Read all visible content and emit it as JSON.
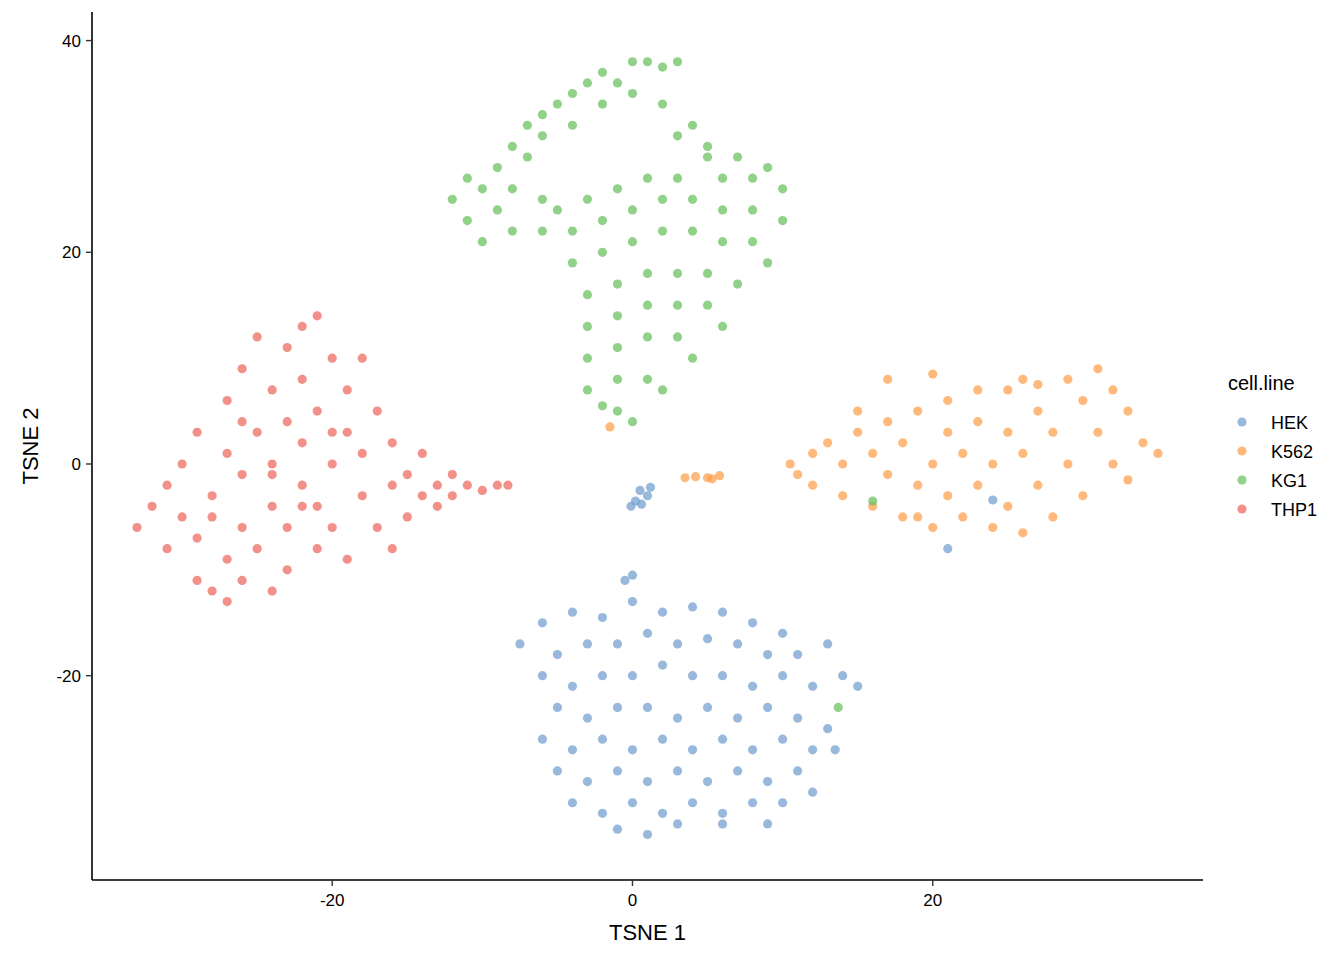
{
  "chart_data": {
    "type": "scatter",
    "x_label": "TSNE 1",
    "y_label": "TSNE 2",
    "legend_title": "cell.line",
    "legend": "right",
    "marker": "circle",
    "grid": false,
    "xlim": [
      -36,
      38
    ],
    "ylim": [
      -39.3,
      42.7
    ],
    "xticks": [
      -20,
      0,
      20
    ],
    "yticks": [
      -20,
      0,
      20,
      40
    ],
    "series": [
      {
        "name": "HEK",
        "color": "#729ece",
        "x": [
          -7.5,
          -6,
          -4,
          -2,
          0,
          2,
          4,
          6,
          8,
          10,
          -0.5,
          0,
          -5,
          -3,
          -1,
          1,
          3,
          5,
          7,
          9,
          11,
          13,
          -6,
          -4,
          -2,
          0,
          2,
          4,
          6,
          8,
          10,
          12,
          14,
          -5,
          -3,
          -1,
          1,
          3,
          5,
          7,
          9,
          11,
          13,
          15,
          -6,
          -4,
          -2,
          0,
          2,
          4,
          6,
          8,
          10,
          12,
          13.5,
          -5,
          -3,
          -1,
          1,
          3,
          5,
          7,
          9,
          11,
          12,
          -4,
          -2,
          0,
          2,
          4,
          6,
          8,
          10,
          -1,
          1,
          3,
          6,
          9,
          0.5,
          1,
          0.6,
          0.2,
          1.2,
          -0.1,
          24,
          21
        ],
        "values": [
          -17,
          -15,
          -14,
          -14.5,
          -13,
          -14,
          -13.5,
          -14,
          -15,
          -16,
          -11,
          -10.5,
          -18,
          -17,
          -17,
          -16,
          -17,
          -16.5,
          -17,
          -18,
          -18,
          -17,
          -20,
          -21,
          -20,
          -20,
          -19,
          -20,
          -20,
          -21,
          -20,
          -21,
          -20,
          -23,
          -24,
          -23,
          -23,
          -24,
          -23,
          -24,
          -23,
          -24,
          -25,
          -21,
          -26,
          -27,
          -26,
          -27,
          -26,
          -27,
          -26,
          -27,
          -26,
          -27,
          -27,
          -29,
          -30,
          -29,
          -30,
          -29,
          -30,
          -29,
          -30,
          -29,
          -31,
          -32,
          -33,
          -32,
          -33,
          -32,
          -33,
          -32,
          -32,
          -34.5,
          -35,
          -34,
          -34,
          -34,
          -2.5,
          -3,
          -3.8,
          -3.5,
          -2.2,
          -4,
          -3.4,
          -8
        ]
      },
      {
        "name": "K562",
        "color": "#ff9e4a",
        "x": [
          10.5,
          11,
          12,
          12,
          13,
          14,
          14,
          15,
          16,
          16,
          17,
          17,
          18,
          18,
          19,
          19,
          20,
          20,
          21,
          21,
          21,
          22,
          22,
          23,
          23,
          23,
          24,
          24,
          25,
          25,
          25,
          26,
          26,
          27,
          27,
          27,
          28,
          28,
          29,
          29,
          30,
          30,
          31,
          31,
          32,
          32,
          33,
          33,
          34,
          35,
          17,
          20,
          15,
          19,
          26,
          3.5,
          4.2,
          5,
          5.8,
          5.3,
          -1.5
        ],
        "values": [
          0,
          -1,
          1,
          -2,
          2,
          -3,
          0,
          3,
          -4,
          1,
          4,
          -1,
          -5,
          2,
          5,
          -2,
          -6,
          0,
          6,
          3,
          -3,
          -5,
          1,
          7,
          4,
          -2,
          -6,
          0,
          7,
          3,
          -4,
          -6.5,
          1,
          7.5,
          5,
          -2,
          -5,
          3,
          8,
          0,
          6,
          -3,
          9,
          3,
          7,
          0,
          5,
          -1.5,
          2,
          1,
          8,
          8.5,
          5,
          -5,
          8,
          -1.3,
          -1.2,
          -1.3,
          -1.1,
          -1.4,
          3.5
        ]
      },
      {
        "name": "KG1",
        "color": "#67bf5c",
        "x": [
          -12,
          -11,
          -10,
          -9,
          -10,
          -8,
          -11,
          -9,
          -8,
          -8,
          -7,
          -6,
          -5,
          -4,
          -3,
          -2,
          -1,
          0,
          1,
          2,
          3,
          -2,
          0,
          2,
          -4,
          3,
          5,
          4,
          -7,
          -6,
          5,
          7,
          9,
          -3,
          -1,
          1,
          3,
          6,
          8,
          10,
          -4,
          -2,
          0,
          2,
          4,
          6,
          8,
          10,
          -4,
          -2,
          0,
          2,
          4,
          6,
          8,
          9,
          -3,
          -1,
          1,
          3,
          5,
          7,
          -3,
          -1,
          1,
          3,
          5,
          6,
          -3,
          -1,
          1,
          3,
          4,
          -3,
          -1,
          1,
          2,
          -1,
          0,
          -2,
          -5,
          -6,
          -6,
          13.7,
          16
        ],
        "values": [
          25,
          23,
          26,
          24,
          21,
          22,
          27,
          28,
          26,
          30,
          32,
          33,
          34,
          35,
          36,
          37,
          36,
          38,
          38,
          37.5,
          38,
          34,
          35,
          34,
          32,
          31,
          30,
          32,
          29,
          31,
          29,
          29,
          28,
          25,
          26,
          27,
          27,
          27,
          27,
          26,
          22,
          23,
          24,
          25,
          25,
          24,
          24,
          23,
          19,
          20,
          21,
          22,
          22,
          21,
          21,
          19,
          16,
          17,
          18,
          18,
          18,
          17,
          13,
          14,
          15,
          15,
          15,
          13,
          10,
          11,
          12,
          12,
          10,
          7,
          8,
          8,
          7,
          5,
          4,
          5.5,
          24,
          22,
          25,
          -23,
          -3.5
        ]
      },
      {
        "name": "THP1",
        "color": "#ed665d",
        "x": [
          -33,
          -32,
          -31,
          -31,
          -30,
          -30,
          -29,
          -29,
          -29,
          -28,
          -28,
          -27,
          -27,
          -27,
          -27,
          -26,
          -26,
          -26,
          -26,
          -25,
          -25,
          -25,
          -24,
          -24,
          -24,
          -24,
          -23,
          -23,
          -23,
          -23,
          -22,
          -22,
          -22,
          -22,
          -21,
          -21,
          -21,
          -21,
          -20,
          -20,
          -20,
          -19,
          -19,
          -19,
          -18,
          -18,
          -18,
          -17,
          -17,
          -16,
          -16,
          -16,
          -15,
          -15,
          -14,
          -14,
          -13,
          -13,
          -12,
          -12,
          -11,
          -10,
          -9,
          -8.3,
          -28,
          -26,
          -24,
          -22,
          -20
        ],
        "values": [
          -6,
          -4,
          -8,
          -2,
          -5,
          0,
          -11,
          -7,
          3,
          -12,
          -3,
          -13,
          -9,
          1,
          6,
          -11,
          -6,
          -1,
          9,
          -8,
          3,
          12,
          -12,
          -4,
          0,
          7,
          -10,
          -6,
          4,
          11,
          -2,
          2,
          8,
          13,
          14,
          -8,
          -4,
          5,
          0,
          10,
          -6,
          -9,
          3,
          7,
          -3,
          1,
          10,
          -6,
          5,
          -2,
          -8,
          2,
          -5,
          -1,
          -3,
          1,
          -2,
          -4,
          -1,
          -3,
          -2,
          -2.5,
          -2,
          -2,
          -5,
          4,
          -1,
          -4,
          3
        ]
      }
    ]
  }
}
